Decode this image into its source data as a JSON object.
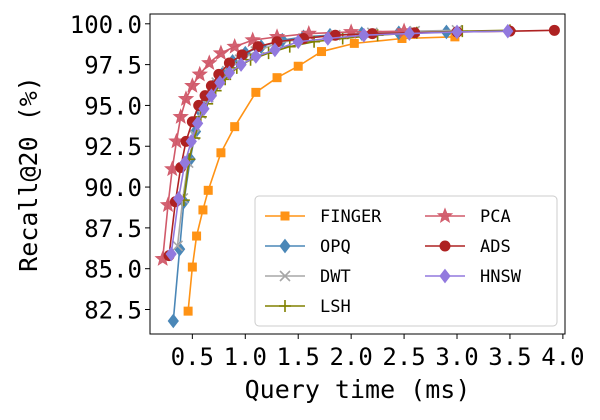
{
  "chart_data": {
    "type": "line",
    "title": "",
    "xlabel": "Query time (ms)",
    "ylabel": "Recall@20 (%)",
    "xlim": [
      0.1,
      4.02
    ],
    "ylim": [
      81.0,
      100.6
    ],
    "xticks": [
      0.5,
      1.0,
      1.5,
      2.0,
      2.5,
      3.0,
      3.5,
      4.0
    ],
    "xtick_labels": [
      "0.5",
      "1.0",
      "1.5",
      "2.0",
      "2.5",
      "3.0",
      "3.5",
      "4.0"
    ],
    "yticks": [
      82.5,
      85.0,
      87.5,
      90.0,
      92.5,
      95.0,
      97.5,
      100.0
    ],
    "ytick_labels": [
      "82.5",
      "85.0",
      "87.5",
      "90.0",
      "92.5",
      "95.0",
      "97.5",
      "100.0"
    ],
    "legend_position": "lower-right",
    "legend_columns": 2,
    "series": [
      {
        "name": "FINGER",
        "color": "#ff9315",
        "marker": "square",
        "x": [
          0.46,
          0.5,
          0.54,
          0.6,
          0.65,
          0.77,
          0.9,
          1.1,
          1.3,
          1.5,
          1.72,
          2.03,
          2.48,
          2.98
        ],
        "y": [
          82.4,
          85.1,
          87.0,
          88.6,
          89.8,
          92.1,
          93.7,
          95.8,
          96.7,
          97.4,
          98.3,
          98.8,
          99.1,
          99.2
        ]
      },
      {
        "name": "OPQ",
        "color": "#4a87b7",
        "marker": "diamond",
        "x": [
          0.32,
          0.38,
          0.42,
          0.48,
          0.53,
          0.58,
          0.63,
          0.7,
          0.78,
          0.88,
          1.0,
          1.15,
          1.35,
          1.55,
          1.8,
          2.1,
          2.45,
          2.9
        ],
        "y": [
          81.8,
          86.2,
          89.1,
          91.7,
          93.4,
          94.6,
          95.4,
          96.2,
          96.9,
          97.7,
          98.2,
          98.6,
          99.0,
          99.2,
          99.3,
          99.4,
          99.45,
          99.5
        ]
      },
      {
        "name": "DWT",
        "color": "#a7a7a7",
        "marker": "x",
        "x": [
          0.36,
          0.41,
          0.46,
          0.52,
          0.58,
          0.65,
          0.73,
          0.83,
          0.95,
          1.1,
          1.3,
          1.55,
          1.85,
          2.2,
          2.6,
          3.0
        ],
        "y": [
          86.4,
          89.3,
          91.5,
          93.2,
          94.5,
          95.5,
          96.4,
          97.1,
          97.8,
          98.3,
          98.8,
          99.1,
          99.3,
          99.45,
          99.55,
          99.6
        ]
      },
      {
        "name": "LSH",
        "color": "#808000",
        "marker": "plus",
        "x": [
          0.42,
          0.47,
          0.52,
          0.58,
          0.64,
          0.72,
          0.81,
          0.92,
          1.05,
          1.22,
          1.42,
          1.65,
          1.92,
          2.25,
          2.62,
          3.05,
          3.5
        ],
        "y": [
          89.2,
          91.7,
          93.0,
          94.3,
          95.1,
          95.9,
          96.6,
          97.3,
          97.8,
          98.2,
          98.6,
          98.9,
          99.1,
          99.3,
          99.45,
          99.55,
          99.6
        ]
      },
      {
        "name": "PCA",
        "color": "#d15a6a",
        "marker": "star",
        "x": [
          0.22,
          0.27,
          0.31,
          0.35,
          0.39,
          0.44,
          0.5,
          0.57,
          0.66,
          0.77,
          0.9,
          1.07,
          1.3,
          1.6,
          2.0,
          2.5
        ],
        "y": [
          85.6,
          88.9,
          91.1,
          92.8,
          94.3,
          95.4,
          96.2,
          96.9,
          97.6,
          98.2,
          98.6,
          99.0,
          99.2,
          99.4,
          99.5,
          99.55
        ]
      },
      {
        "name": "ADS",
        "color": "#ae2222",
        "marker": "circle",
        "x": [
          0.28,
          0.34,
          0.39,
          0.44,
          0.5,
          0.56,
          0.62,
          0.68,
          0.75,
          0.85,
          0.97,
          1.12,
          1.3,
          1.55,
          1.85,
          2.2,
          2.6,
          3.0,
          3.5,
          3.92
        ],
        "y": [
          85.8,
          89.1,
          91.2,
          92.8,
          94.0,
          95.0,
          95.6,
          96.2,
          96.9,
          97.6,
          98.1,
          98.6,
          98.9,
          99.1,
          99.3,
          99.4,
          99.45,
          99.5,
          99.55,
          99.6
        ]
      },
      {
        "name": "HNSW",
        "color": "#9279de",
        "marker": "diamond",
        "x": [
          0.3,
          0.37,
          0.43,
          0.49,
          0.55,
          0.61,
          0.68,
          0.76,
          0.85,
          0.96,
          1.1,
          1.28,
          1.5,
          1.78,
          2.12,
          2.55,
          3.0,
          3.48
        ],
        "y": [
          85.9,
          89.3,
          91.5,
          92.8,
          93.9,
          94.8,
          95.6,
          96.4,
          97.0,
          97.5,
          98.0,
          98.4,
          98.9,
          99.1,
          99.3,
          99.4,
          99.5,
          99.55
        ]
      }
    ]
  }
}
